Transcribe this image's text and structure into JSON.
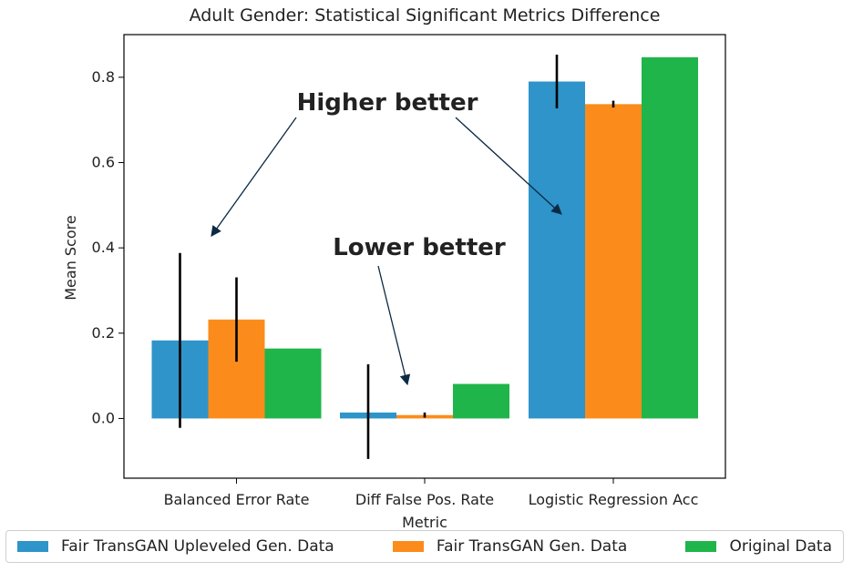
{
  "chart_data": {
    "type": "bar",
    "title": "Adult Gender: Statistical Significant Metrics Difference",
    "xlabel": "Metric",
    "ylabel": "Mean Score",
    "categories": [
      "Balanced Error Rate",
      "Diff False Pos. Rate",
      "Logistic Regression Acc"
    ],
    "ylim": [
      -0.14,
      0.9
    ],
    "yticks": [
      "0.0",
      "0.2",
      "0.4",
      "0.6",
      "0.8"
    ],
    "grid": false,
    "legend_position": "bottom",
    "series": [
      {
        "name": "Fair TransGAN Upleveled Gen. Data",
        "color": "#2e94c9",
        "values": [
          0.183,
          0.014,
          0.79
        ],
        "error": [
          [
            -0.022,
            0.388
          ],
          [
            -0.095,
            0.127
          ],
          [
            0.727,
            0.853
          ]
        ]
      },
      {
        "name": "Fair TransGAN Gen. Data",
        "color": "#fb8c1c",
        "values": [
          0.232,
          0.008,
          0.737
        ],
        "error": [
          [
            0.133,
            0.331
          ],
          [
            0.002,
            0.014
          ],
          [
            0.729,
            0.745
          ]
        ]
      },
      {
        "name": "Original Data",
        "color": "#1fb54a",
        "values": [
          0.164,
          0.081,
          0.847
        ],
        "error": null
      }
    ],
    "annotations": [
      {
        "text": "Higher better",
        "targets": [
          "Balanced Error Rate",
          "Logistic Regression Acc"
        ]
      },
      {
        "text": "Lower better",
        "targets": [
          "Diff False Pos. Rate"
        ]
      }
    ]
  }
}
